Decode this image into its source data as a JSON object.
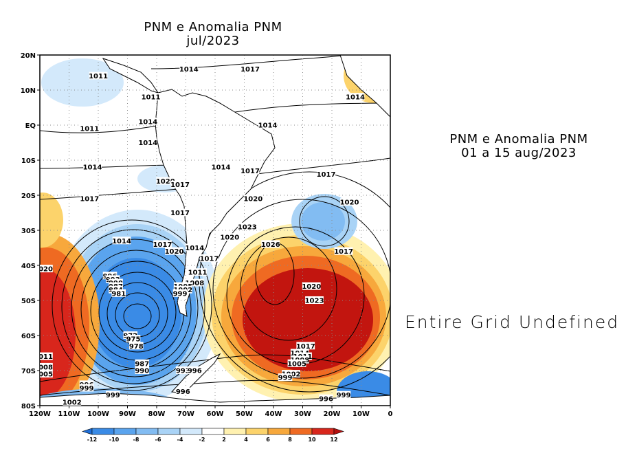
{
  "map": {
    "title_line1": "PNM e Anomalia PNM",
    "title_line2": "jul/2023",
    "lat_labels": [
      "20N",
      "10N",
      "EQ",
      "10S",
      "20S",
      "30S",
      "40S",
      "50S",
      "60S",
      "70S",
      "80S"
    ],
    "lon_labels": [
      "120W",
      "110W",
      "100W",
      "90W",
      "80W",
      "70W",
      "60W",
      "50W",
      "40W",
      "30W",
      "20W",
      "10W",
      "0"
    ],
    "isobar_labels": [
      {
        "text": "1011",
        "lon": -100,
        "lat": 14
      },
      {
        "text": "1014",
        "lon": -69,
        "lat": 16
      },
      {
        "text": "1017",
        "lon": -48,
        "lat": 16
      },
      {
        "text": "1014",
        "lon": -12,
        "lat": 8
      },
      {
        "text": "1011",
        "lon": -82,
        "lat": 8
      },
      {
        "text": "1014",
        "lon": -83,
        "lat": 1
      },
      {
        "text": "1011",
        "lon": -103,
        "lat": -1
      },
      {
        "text": "1014",
        "lon": -42,
        "lat": 0
      },
      {
        "text": "1014",
        "lon": -83,
        "lat": -5
      },
      {
        "text": "1014",
        "lon": -102,
        "lat": -12
      },
      {
        "text": "1014",
        "lon": -58,
        "lat": -12
      },
      {
        "text": "1017",
        "lon": -48,
        "lat": -13
      },
      {
        "text": "1017",
        "lon": -22,
        "lat": -14
      },
      {
        "text": "1020",
        "lon": -77,
        "lat": -16
      },
      {
        "text": "1017",
        "lon": -72,
        "lat": -17
      },
      {
        "text": "1017",
        "lon": -103,
        "lat": -21
      },
      {
        "text": "1020",
        "lon": -47,
        "lat": -21
      },
      {
        "text": "1020",
        "lon": -14,
        "lat": -22
      },
      {
        "text": "1017",
        "lon": -72,
        "lat": -25
      },
      {
        "text": "1023",
        "lon": -49,
        "lat": -29
      },
      {
        "text": "1020",
        "lon": -55,
        "lat": -32
      },
      {
        "text": "1014",
        "lon": -92,
        "lat": -33
      },
      {
        "text": "1026",
        "lon": -41,
        "lat": -34
      },
      {
        "text": "1017",
        "lon": -78,
        "lat": -34
      },
      {
        "text": "1014",
        "lon": -67,
        "lat": -35
      },
      {
        "text": "1020",
        "lon": -74,
        "lat": -36
      },
      {
        "text": "1017",
        "lon": -16,
        "lat": -36
      },
      {
        "text": "1017",
        "lon": -62,
        "lat": -38
      },
      {
        "text": "020",
        "lon": -118,
        "lat": -41
      },
      {
        "text": "1011",
        "lon": -66,
        "lat": -42
      },
      {
        "text": "996",
        "lon": -96,
        "lat": -43
      },
      {
        "text": "993",
        "lon": -95,
        "lat": -44
      },
      {
        "text": "990",
        "lon": -94,
        "lat": -45
      },
      {
        "text": "1008",
        "lon": -67,
        "lat": -45
      },
      {
        "text": "987",
        "lon": -94,
        "lat": -46
      },
      {
        "text": "1005",
        "lon": -71,
        "lat": -46
      },
      {
        "text": "984",
        "lon": -94,
        "lat": -47
      },
      {
        "text": "1002",
        "lon": -71,
        "lat": -47
      },
      {
        "text": "981",
        "lon": -93,
        "lat": -48
      },
      {
        "text": "999",
        "lon": -72,
        "lat": -48
      },
      {
        "text": "1020",
        "lon": -27,
        "lat": -46
      },
      {
        "text": "1023",
        "lon": -26,
        "lat": -50
      },
      {
        "text": "972",
        "lon": -89,
        "lat": -60
      },
      {
        "text": "975",
        "lon": -88,
        "lat": -61
      },
      {
        "text": "978",
        "lon": -87,
        "lat": -63
      },
      {
        "text": "1017",
        "lon": -29,
        "lat": -63
      },
      {
        "text": "1014",
        "lon": -31,
        "lat": -65
      },
      {
        "text": "1011",
        "lon": -30,
        "lat": -66
      },
      {
        "text": "1008",
        "lon": -31,
        "lat": -67
      },
      {
        "text": "1005",
        "lon": -32,
        "lat": -68
      },
      {
        "text": "011",
        "lon": -118,
        "lat": -66
      },
      {
        "text": "008",
        "lon": -118,
        "lat": -69
      },
      {
        "text": "005",
        "lon": -118,
        "lat": -71
      },
      {
        "text": "987",
        "lon": -85,
        "lat": -68
      },
      {
        "text": "990",
        "lon": -85,
        "lat": -70
      },
      {
        "text": "993",
        "lon": -71,
        "lat": -70
      },
      {
        "text": "996",
        "lon": -67,
        "lat": -70
      },
      {
        "text": "1002",
        "lon": -34,
        "lat": -71
      },
      {
        "text": "999",
        "lon": -36,
        "lat": -72
      },
      {
        "text": "996",
        "lon": -104,
        "lat": -74
      },
      {
        "text": "999",
        "lon": -104,
        "lat": -75
      },
      {
        "text": "999",
        "lon": -95,
        "lat": -77
      },
      {
        "text": "996",
        "lon": -71,
        "lat": -76
      },
      {
        "text": "1002",
        "lon": -109,
        "lat": -79
      },
      {
        "text": "996",
        "lon": -22,
        "lat": -78
      },
      {
        "text": "999",
        "lon": -16,
        "lat": -77
      }
    ]
  },
  "colorbar": {
    "tick_labels": [
      "-12",
      "-10",
      "-8",
      "-6",
      "-4",
      "-2",
      "2",
      "4",
      "6",
      "8",
      "10",
      "12"
    ],
    "colors": [
      "#1e6fd9",
      "#3a8be6",
      "#5aa4ee",
      "#82bcf2",
      "#a9d3f6",
      "#d3e9fb",
      "#ffffff",
      "#fff1b0",
      "#fcd36b",
      "#f7a83c",
      "#ef6a22",
      "#d8261c",
      "#b5100f"
    ]
  },
  "panel2": {
    "title_line1": "PNM e Anomalia PNM",
    "title_line2": "01 a 15 aug/2023",
    "message": "Entire Grid Undefined"
  }
}
